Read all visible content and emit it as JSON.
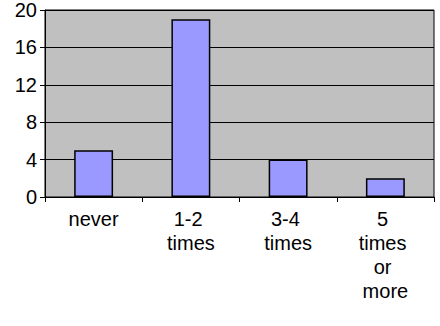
{
  "chart_data": {
    "type": "bar",
    "categories": [
      "never",
      "1-2 times",
      "3-4 times",
      "5 times or more"
    ],
    "values": [
      5,
      19,
      4,
      2
    ],
    "color": "#9999ff",
    "ylim": [
      0,
      20
    ],
    "yticks": [
      0,
      4,
      8,
      12,
      16,
      20
    ],
    "grid": true
  }
}
